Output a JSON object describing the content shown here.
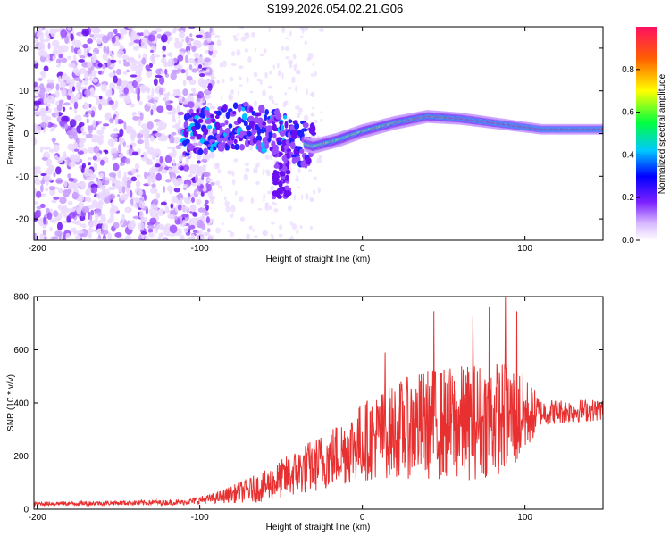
{
  "title": "S199.2026.054.02.21.G06",
  "chart_data": [
    {
      "type": "heatmap",
      "name": "spectrogram",
      "xlabel": "Height of straight line (km)",
      "ylabel": "Frequency (Hz)",
      "xlim": [
        -202,
        148
      ],
      "ylim": [
        -25,
        25
      ],
      "xticks": [
        -200,
        -100,
        0,
        100
      ],
      "yticks": [
        -20,
        -10,
        0,
        10,
        20
      ],
      "colorbar": {
        "label": "Normalized spectral amplitude",
        "range": [
          0,
          1
        ],
        "ticks": [
          "0.0",
          "0.2",
          "0.4",
          "0.6",
          "0.8"
        ]
      },
      "signal_trace": [
        {
          "x": -110,
          "f": 0
        },
        {
          "x": -90,
          "f": 1
        },
        {
          "x": -70,
          "f": 2
        },
        {
          "x": -55,
          "f": 0.5
        },
        {
          "x": -40,
          "f": -2
        },
        {
          "x": -30,
          "f": -3
        },
        {
          "x": -15,
          "f": -1.5
        },
        {
          "x": 0,
          "f": 0.5
        },
        {
          "x": 20,
          "f": 2.5
        },
        {
          "x": 40,
          "f": 4
        },
        {
          "x": 60,
          "f": 3.5
        },
        {
          "x": 80,
          "f": 2.5
        },
        {
          "x": 100,
          "f": 1.5
        },
        {
          "x": 110,
          "f": 1
        },
        {
          "x": 148,
          "f": 1
        }
      ]
    },
    {
      "type": "line",
      "name": "snr",
      "xlabel": "Height of straight line (km)",
      "ylabel": "SNR (10 * v/v)",
      "xlim": [
        -202,
        148
      ],
      "ylim": [
        0,
        800
      ],
      "xticks": [
        -200,
        -100,
        0,
        100
      ],
      "yticks": [
        0,
        200,
        400,
        600,
        800
      ],
      "color": "#e83030",
      "envelope": [
        {
          "x": -202,
          "base": 20,
          "amp": 15
        },
        {
          "x": -110,
          "base": 25,
          "amp": 20
        },
        {
          "x": -90,
          "base": 40,
          "amp": 40
        },
        {
          "x": -60,
          "base": 80,
          "amp": 120
        },
        {
          "x": -40,
          "base": 130,
          "amp": 180
        },
        {
          "x": -20,
          "base": 180,
          "amp": 230
        },
        {
          "x": 0,
          "base": 240,
          "amp": 300
        },
        {
          "x": 20,
          "base": 280,
          "amp": 360
        },
        {
          "x": 40,
          "base": 300,
          "amp": 420
        },
        {
          "x": 60,
          "base": 300,
          "amp": 440
        },
        {
          "x": 80,
          "base": 320,
          "amp": 440
        },
        {
          "x": 95,
          "base": 330,
          "amp": 400
        },
        {
          "x": 110,
          "base": 360,
          "amp": 100
        },
        {
          "x": 148,
          "base": 370,
          "amp": 80
        }
      ],
      "peaks": [
        {
          "x": 14,
          "y": 590
        },
        {
          "x": 44,
          "y": 745
        },
        {
          "x": 68,
          "y": 725
        },
        {
          "x": 78,
          "y": 760
        },
        {
          "x": 88,
          "y": 800
        },
        {
          "x": 95,
          "y": 745
        }
      ]
    }
  ]
}
